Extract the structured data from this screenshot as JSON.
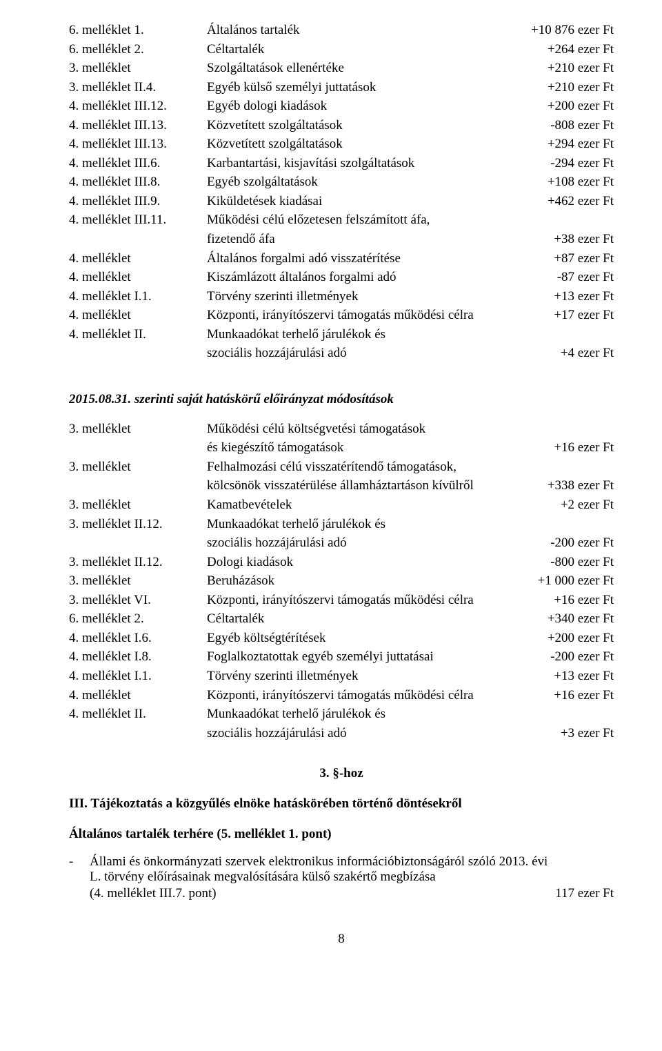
{
  "block1": [
    {
      "ref": "6. melléklet 1.",
      "desc": "Általános tartalék",
      "amt": "+10 876 ezer Ft"
    },
    {
      "ref": "6. melléklet 2.",
      "desc": "Céltartalék",
      "amt": "+264 ezer Ft"
    },
    {
      "ref": "3. melléklet",
      "desc": "Szolgáltatások ellenértéke",
      "amt": "+210 ezer Ft"
    },
    {
      "ref": "3. melléklet II.4.",
      "desc": "Egyéb külső személyi juttatások",
      "amt": "+210 ezer Ft"
    },
    {
      "ref": "4. melléklet III.12.",
      "desc": "Egyéb dologi kiadások",
      "amt": "+200 ezer Ft"
    },
    {
      "ref": "4. melléklet III.13.",
      "desc": "Közvetített szolgáltatások",
      "amt": "-808 ezer Ft"
    },
    {
      "ref": "4. melléklet III.13.",
      "desc": "Közvetített szolgáltatások",
      "amt": "+294 ezer Ft"
    },
    {
      "ref": "4. melléklet III.6.",
      "desc": "Karbantartási, kisjavítási szolgáltatások",
      "amt": "-294 ezer Ft"
    },
    {
      "ref": "4. melléklet III.8.",
      "desc": "Egyéb szolgáltatások",
      "amt": "+108 ezer Ft"
    },
    {
      "ref": "4. melléklet III.9.",
      "desc": "Kiküldetések kiadásai",
      "amt": "+462 ezer Ft"
    },
    {
      "ref": "4. melléklet III.11.",
      "desc1": "Működési célú előzetesen felszámított áfa,",
      "desc2": "fizetendő áfa",
      "amt": "+38 ezer Ft",
      "wrap": true
    },
    {
      "ref": "4. melléklet",
      "desc": "Általános forgalmi adó visszatérítése",
      "amt": "+87 ezer Ft"
    },
    {
      "ref": "4. melléklet",
      "desc": "Kiszámlázott általános forgalmi adó",
      "amt": "-87 ezer Ft"
    },
    {
      "ref": "4. melléklet I.1.",
      "desc": "Törvény szerinti illetmények",
      "amt": "+13 ezer Ft"
    },
    {
      "ref": "4. melléklet",
      "desc": "Központi, irányítószervi támogatás működési célra",
      "amt": "+17 ezer Ft"
    },
    {
      "ref": "4. melléklet II.",
      "desc1": "Munkaadókat terhelő járulékok és",
      "desc2": "szociális hozzájárulási adó",
      "amt": "+4 ezer Ft",
      "wrap": true
    }
  ],
  "section1_title": "2015.08.31. szerinti saját hatáskörű előirányzat módosítások",
  "block2": [
    {
      "ref": "3. melléklet",
      "desc1": "Működési célú költségvetési támogatások",
      "desc2": "és kiegészítő támogatások",
      "amt": "+16 ezer Ft",
      "wrap": true
    },
    {
      "ref": "3. melléklet",
      "desc1": "Felhalmozási célú visszatérítendő támogatások,",
      "desc2": "kölcsönök visszatérülése államháztartáson kívülről",
      "amt": "+338 ezer Ft",
      "wrap": true
    },
    {
      "ref": "3. melléklet",
      "desc": "Kamatbevételek",
      "amt": "+2 ezer Ft"
    },
    {
      "ref": "3. melléklet II.12.",
      "desc1": "Munkaadókat terhelő járulékok és",
      "desc2": "szociális hozzájárulási adó",
      "amt": "-200 ezer Ft",
      "wrap": true
    },
    {
      "ref": "3. melléklet II.12.",
      "desc": "Dologi kiadások",
      "amt": "-800 ezer Ft"
    },
    {
      "ref": "3. melléklet",
      "desc": "Beruházások",
      "amt": "+1 000 ezer Ft"
    },
    {
      "ref": "3. melléklet VI.",
      "desc": "Központi, irányítószervi támogatás működési célra",
      "amt": "+16 ezer Ft"
    },
    {
      "ref": "6. melléklet 2.",
      "desc": "Céltartalék",
      "amt": "+340 ezer Ft"
    },
    {
      "ref": "4. melléklet I.6.",
      "desc": "Egyéb költségtérítések",
      "amt": "+200 ezer Ft"
    },
    {
      "ref": "4. melléklet I.8.",
      "desc": "Foglalkoztatottak egyéb személyi juttatásai",
      "amt": "-200 ezer Ft"
    },
    {
      "ref": "4. melléklet I.1.",
      "desc": "Törvény szerinti illetmények",
      "amt": "+13 ezer Ft"
    },
    {
      "ref": "4. melléklet",
      "desc": "Központi, irányítószervi támogatás működési célra",
      "amt": "+16 ezer Ft"
    },
    {
      "ref": "4. melléklet II.",
      "desc1": "Munkaadókat terhelő járulékok és",
      "desc2": "szociális hozzájárulási adó",
      "amt": "+3 ezer Ft",
      "wrap": true
    }
  ],
  "h3_center": "3. §-hoz",
  "h3_left": "III. Tájékoztatás a közgyűlés elnöke hatáskörében történő döntésekről",
  "sub_title": "Általános tartalék terhére (5. melléklet 1. pont)",
  "bullet": {
    "line1": "Állami és önkormányzati szervek elektronikus információbiztonságáról szóló 2013. évi",
    "line2": "L. törvény előírásainak megvalósítására külső szakértő megbízása",
    "ref": "(4. melléklet III.7. pont)",
    "amt": "117 ezer Ft"
  },
  "page_num": "8"
}
